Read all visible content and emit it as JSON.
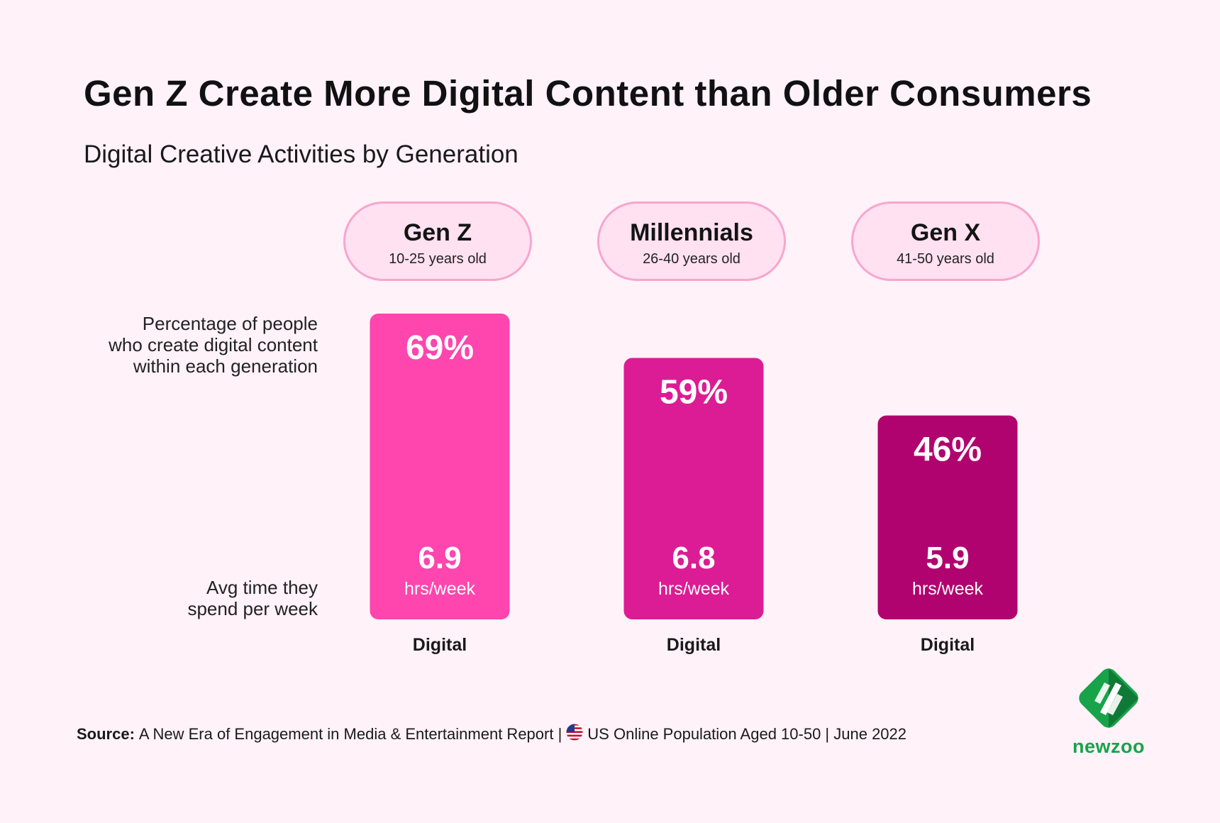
{
  "title": "Gen Z Create More Digital Content than Older Consumers",
  "subtitle": "Digital Creative Activities by Generation",
  "row_labels": {
    "percentage": [
      "Percentage of people",
      "who create digital content",
      "within each generation"
    ],
    "time": [
      "Avg time they",
      "spend per week"
    ]
  },
  "generations": [
    {
      "name": "Gen Z",
      "age": "10-25 years old"
    },
    {
      "name": "Millennials",
      "age": "26-40 years old"
    },
    {
      "name": "Gen X",
      "age": "41-50 years old"
    }
  ],
  "chart_data": {
    "type": "bar",
    "title": "Digital Creative Activities by Generation",
    "categories": [
      "Gen Z",
      "Millennials",
      "Gen X"
    ],
    "series": [
      {
        "name": "Percentage of people who create digital content",
        "values": [
          69,
          59,
          46
        ],
        "labels": [
          "69%",
          "59%",
          "46%"
        ]
      },
      {
        "name": "Avg time they spend per week",
        "values": [
          6.9,
          6.8,
          5.9
        ],
        "labels": [
          "6.9",
          "6.8",
          "5.9"
        ],
        "unit": "hrs/week"
      }
    ],
    "bar_category_label": "Digital",
    "colors": [
      "#ff45ae",
      "#dc1c94",
      "#b1036f"
    ],
    "ylim": [
      0,
      69
    ]
  },
  "footer": {
    "source_label": "Source:",
    "source_text": "A New Era of Engagement in Media & Entertainment Report |",
    "population": "US Online Population Aged 10-50 | June 2022"
  },
  "logo": {
    "text": "newzoo",
    "color": "#18a34a"
  }
}
